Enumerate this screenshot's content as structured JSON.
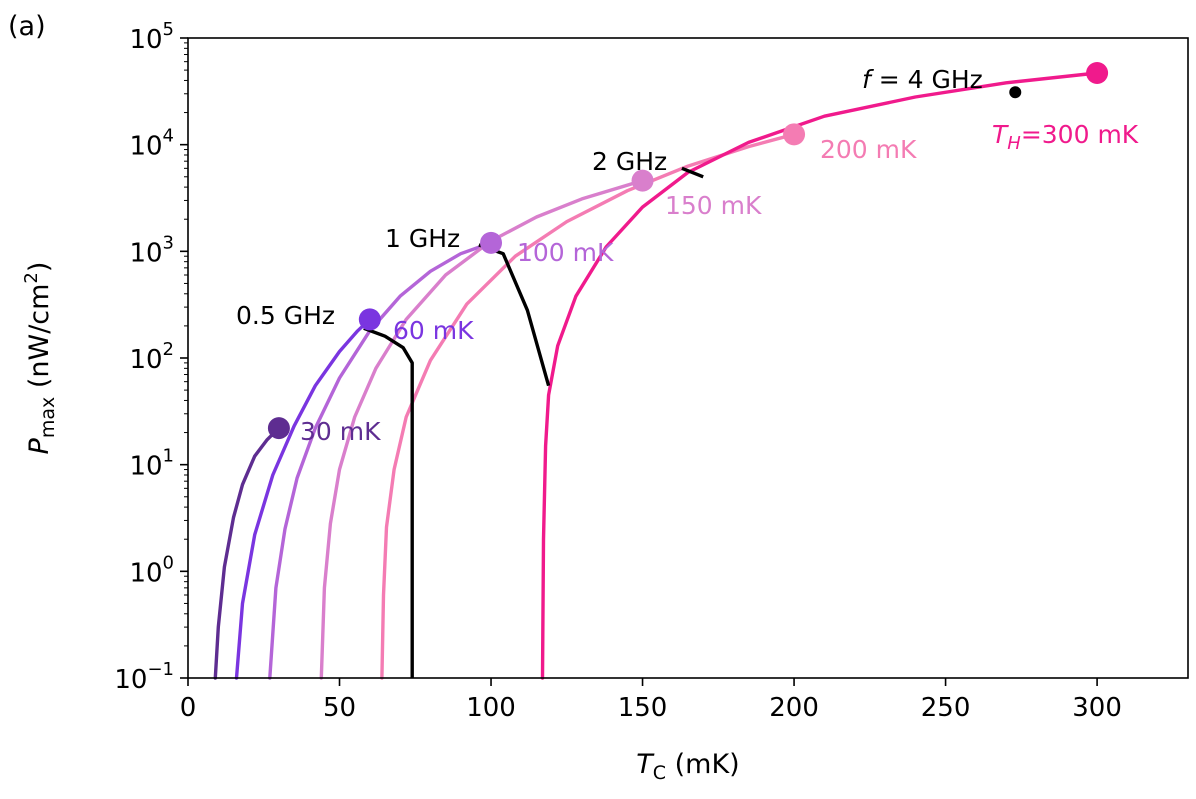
{
  "panel_label": "(a)",
  "chart_data": {
    "type": "line",
    "title": "",
    "xlabel": {
      "main": "T",
      "sub": "C",
      "unit": " (mK)"
    },
    "ylabel": {
      "main": "P",
      "sub": "max",
      "unit_pre": " (nW/cm",
      "unit_sup": "2",
      "unit_post": ")"
    },
    "xlim": [
      0,
      330
    ],
    "ylim": [
      0.1,
      100000
    ],
    "yscale": "log",
    "xticks": [
      0,
      50,
      100,
      150,
      200,
      250,
      300
    ],
    "xtick_labels": [
      "0",
      "50",
      "100",
      "150",
      "200",
      "250",
      "300"
    ],
    "yticks": [
      {
        "value": 0.1,
        "base": "10",
        "exp": "−1"
      },
      {
        "value": 1,
        "base": "10",
        "exp": "0"
      },
      {
        "value": 10,
        "base": "10",
        "exp": "1"
      },
      {
        "value": 100,
        "base": "10",
        "exp": "2"
      },
      {
        "value": 1000,
        "base": "10",
        "exp": "3"
      },
      {
        "value": 10000,
        "base": "10",
        "exp": "4"
      },
      {
        "value": 100000,
        "base": "10",
        "exp": "5"
      }
    ],
    "series": [
      {
        "name": "30 mK",
        "label": "30 mK",
        "TH": 30,
        "color": "#5e2d91",
        "x": [
          9,
          10,
          12,
          15,
          18,
          22,
          26,
          30
        ],
        "y": [
          0.1,
          0.3,
          1.1,
          3.2,
          6.5,
          12,
          17,
          22
        ],
        "peak": [
          30,
          22
        ],
        "labelAt": [
          300,
          440
        ]
      },
      {
        "name": "60 mK",
        "label": "60 mK",
        "TH": 60,
        "color": "#7a35e0",
        "x": [
          16,
          18,
          22,
          28,
          35,
          42,
          50,
          56,
          60
        ],
        "y": [
          0.1,
          0.5,
          2.2,
          8,
          23,
          55,
          115,
          180,
          230
        ],
        "peak": [
          60,
          230
        ],
        "labelAt": [
          393,
          339
        ]
      },
      {
        "name": "100 mK",
        "label": "100 mK",
        "TH": 100,
        "color": "#b465d8",
        "x": [
          27,
          29,
          32,
          36,
          42,
          50,
          60,
          70,
          80,
          90,
          100
        ],
        "y": [
          0.1,
          0.7,
          2.5,
          7.5,
          22,
          65,
          180,
          380,
          650,
          950,
          1200
        ],
        "peak": [
          100,
          1200
        ],
        "labelAt": [
          517,
          261
        ]
      },
      {
        "name": "150 mK",
        "label": "150 mK",
        "TH": 150,
        "color": "#d97fcc",
        "x": [
          44,
          45,
          47,
          50,
          55,
          62,
          72,
          85,
          100,
          115,
          130,
          150
        ],
        "y": [
          0.1,
          0.7,
          2.8,
          9,
          28,
          80,
          230,
          600,
          1250,
          2100,
          3100,
          4600
        ],
        "peak": [
          150,
          4600
        ],
        "labelAt": [
          665,
          214
        ]
      },
      {
        "name": "200 mK",
        "label": "200 mK",
        "TH": 200,
        "color": "#f47cb3",
        "x": [
          64,
          64.5,
          65.5,
          68,
          72,
          80,
          92,
          108,
          125,
          145,
          165,
          185,
          200
        ],
        "y": [
          0.1,
          0.6,
          2.6,
          9,
          28,
          95,
          320,
          900,
          1900,
          3700,
          6300,
          9600,
          12500
        ],
        "peak": [
          200,
          12500
        ],
        "labelAt": [
          820,
          158
        ]
      },
      {
        "name": "300 mK",
        "label": "=300 mK",
        "label_prefix": "T",
        "label_sub": "H",
        "TH": 300,
        "color": "#f01a8c",
        "x": [
          117,
          117.3,
          118,
          119,
          122,
          128,
          138,
          150,
          165,
          185,
          210,
          240,
          270,
          300
        ],
        "y": [
          0.1,
          2,
          15,
          45,
          130,
          380,
          1100,
          2600,
          5500,
          10500,
          18500,
          28000,
          38000,
          47000
        ],
        "peak": [
          300,
          47000
        ],
        "labelAt": [
          992,
          143
        ]
      }
    ],
    "frequency_lines": [
      {
        "label": "0.5 GHz",
        "x": [
          58,
          65,
          71,
          74,
          74
        ],
        "y": [
          190,
          160,
          125,
          90,
          0.1
        ],
        "labelAt": [
          236,
          324
        ]
      },
      {
        "label": "1 GHz",
        "x": [
          96,
          104,
          112,
          119
        ],
        "y": [
          1150,
          950,
          280,
          55
        ],
        "labelAt": [
          385,
          247
        ]
      },
      {
        "label": "2 GHz",
        "x": [
          163,
          170
        ],
        "y": [
          6000,
          5000
        ],
        "labelAt": [
          592,
          170
        ]
      },
      {
        "label": "= 4 GHz",
        "prefix": "f",
        "x": [
          273
        ],
        "y": [
          31000
        ],
        "dot": true,
        "labelAt": [
          862,
          88
        ]
      }
    ]
  }
}
